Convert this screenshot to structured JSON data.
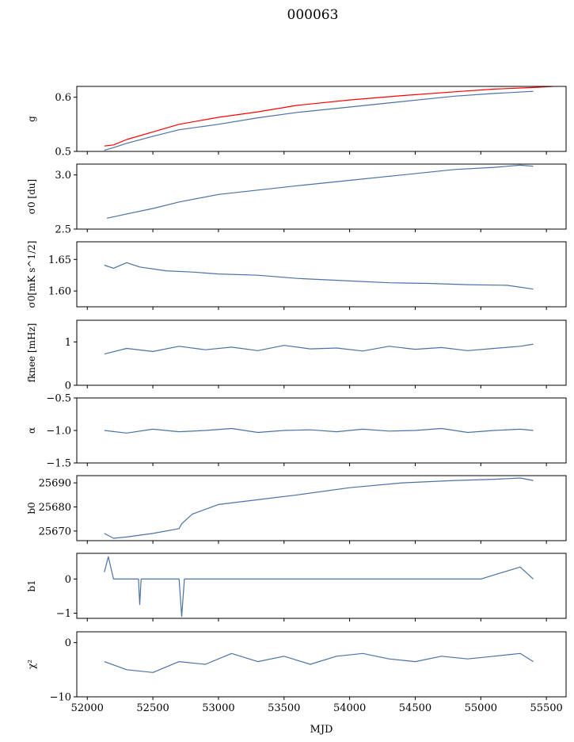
{
  "figure_title": "000063",
  "colors": {
    "series": "#4c72a4",
    "reference": "#ff0000",
    "frame": "#000000"
  },
  "chart_data": {
    "type": "line",
    "title": "000063",
    "xlabel": "MJD",
    "xlim": [
      51920,
      55650
    ],
    "xticks": [
      52000,
      52500,
      53000,
      53500,
      54000,
      54500,
      55000,
      55500
    ],
    "xtick_labels": [
      "52000",
      "52500",
      "53000",
      "53500",
      "54000",
      "54500",
      "55000",
      "55500"
    ],
    "grid": false,
    "panels": [
      {
        "id": "g",
        "ylabel": "g",
        "ylim": [
          0.5,
          0.62
        ],
        "yticks": [
          0.5,
          0.6
        ],
        "ytick_labels": [
          "0.5",
          "0.6"
        ],
        "series": [
          {
            "color": "#4c72a4",
            "x": [
              52130,
              52200,
              52300,
              52500,
              52700,
              53000,
              53300,
              53600,
              54000,
              54400,
              54800,
              55100,
              55400
            ],
            "y": [
              0.502,
              0.507,
              0.515,
              0.528,
              0.54,
              0.55,
              0.562,
              0.572,
              0.582,
              0.592,
              0.602,
              0.607,
              0.611
            ]
          },
          {
            "color": "#ff0000",
            "x": [
              52130,
              52200,
              52300,
              52500,
              52700,
              53000,
              53300,
              53600,
              54000,
              54400,
              54800,
              55100,
              55400,
              55550
            ],
            "y": [
              0.51,
              0.512,
              0.522,
              0.536,
              0.55,
              0.563,
              0.573,
              0.585,
              0.595,
              0.603,
              0.61,
              0.615,
              0.618,
              0.62
            ]
          }
        ]
      },
      {
        "id": "sigma0_du",
        "ylabel": "σ0 [du]",
        "ylim": [
          2.5,
          3.1
        ],
        "yticks": [
          2.5,
          3.0
        ],
        "ytick_labels": [
          "2.5",
          "3.0"
        ],
        "series": [
          {
            "color": "#4c72a4",
            "x": [
              52150,
              52300,
              52500,
              52700,
              53000,
              53300,
              53600,
              54000,
              54400,
              54800,
              55100,
              55300,
              55400
            ],
            "y": [
              2.6,
              2.64,
              2.69,
              2.75,
              2.82,
              2.86,
              2.9,
              2.95,
              3.0,
              3.05,
              3.07,
              3.09,
              3.08
            ]
          }
        ]
      },
      {
        "id": "sigma0_mK",
        "ylabel": "σ0[mK s^1/2]",
        "ylim": [
          1.575,
          1.678
        ],
        "yticks": [
          1.6,
          1.65
        ],
        "ytick_labels": [
          "1.60",
          "1.65"
        ],
        "series": [
          {
            "color": "#4c72a4",
            "x": [
              52130,
              52200,
              52300,
              52400,
              52600,
              52800,
              53000,
              53300,
              53600,
              54000,
              54300,
              54600,
              54900,
              55200,
              55400
            ],
            "y": [
              1.641,
              1.636,
              1.645,
              1.638,
              1.632,
              1.63,
              1.627,
              1.625,
              1.62,
              1.616,
              1.613,
              1.612,
              1.61,
              1.609,
              1.603
            ]
          }
        ]
      },
      {
        "id": "fknee",
        "ylabel": "fknee [mHz]",
        "ylim": [
          0,
          1.5
        ],
        "yticks": [
          0,
          1
        ],
        "ytick_labels": [
          "0",
          "1"
        ],
        "series": [
          {
            "color": "#4c72a4",
            "x": [
              52130,
              52300,
              52500,
              52700,
              52900,
              53100,
              53300,
              53500,
              53700,
              53900,
              54100,
              54300,
              54500,
              54700,
              54900,
              55100,
              55300,
              55400
            ],
            "y": [
              0.72,
              0.85,
              0.78,
              0.9,
              0.82,
              0.88,
              0.8,
              0.92,
              0.84,
              0.86,
              0.79,
              0.9,
              0.83,
              0.87,
              0.8,
              0.85,
              0.9,
              0.95
            ]
          }
        ]
      },
      {
        "id": "alpha",
        "ylabel": "α",
        "ylim": [
          -1.5,
          -0.5
        ],
        "yticks": [
          -1.5,
          -1.0,
          -0.5
        ],
        "ytick_labels": [
          "−1.5",
          "−1.0",
          "−0.5"
        ],
        "series": [
          {
            "color": "#4c72a4",
            "x": [
              52130,
              52300,
              52500,
              52700,
              52900,
              53100,
              53300,
              53500,
              53700,
              53900,
              54100,
              54300,
              54500,
              54700,
              54900,
              55100,
              55300,
              55400
            ],
            "y": [
              -1.0,
              -1.04,
              -0.98,
              -1.02,
              -1.0,
              -0.97,
              -1.03,
              -1.0,
              -0.99,
              -1.02,
              -0.98,
              -1.01,
              -1.0,
              -0.97,
              -1.03,
              -1.0,
              -0.98,
              -1.0
            ]
          }
        ]
      },
      {
        "id": "b0",
        "ylabel": "b0",
        "ylim": [
          25666,
          25693
        ],
        "yticks": [
          25670,
          25680,
          25690
        ],
        "ytick_labels": [
          "25670",
          "25680",
          "25690"
        ],
        "series": [
          {
            "color": "#4c72a4",
            "x": [
              52130,
              52200,
              52300,
              52500,
              52700,
              52720,
              52800,
              53000,
              53300,
              53600,
              54000,
              54400,
              54800,
              55100,
              55300,
              55400
            ],
            "y": [
              25669,
              25667,
              25667.5,
              25669,
              25671,
              25673,
              25677,
              25681,
              25683,
              25685,
              25688,
              25690,
              25691,
              25691.5,
              25692,
              25691
            ]
          }
        ]
      },
      {
        "id": "b1",
        "ylabel": "b1",
        "ylim": [
          -1.15,
          0.75
        ],
        "yticks": [
          -1,
          0
        ],
        "ytick_labels": [
          "−1",
          "0"
        ],
        "series": [
          {
            "color": "#4c72a4",
            "x": [
              52130,
              52160,
              52200,
              52300,
              52390,
              52400,
              52410,
              52600,
              52700,
              52720,
              52740,
              53000,
              53500,
              54000,
              54500,
              55000,
              55300,
              55400
            ],
            "y": [
              0.2,
              0.65,
              0.0,
              0.0,
              0.0,
              -0.75,
              0.0,
              0.0,
              0.0,
              -1.1,
              0.0,
              0.0,
              0.0,
              0.0,
              0.0,
              0.0,
              0.35,
              0.0
            ]
          }
        ]
      },
      {
        "id": "chi2",
        "ylabel": "χ²",
        "ylim": [
          -10,
          2
        ],
        "yticks": [
          -10,
          0
        ],
        "ytick_labels": [
          "−10",
          "0"
        ],
        "series": [
          {
            "color": "#4c72a4",
            "x": [
              52130,
              52300,
              52500,
              52700,
              52900,
              53100,
              53300,
              53500,
              53700,
              53900,
              54100,
              54300,
              54500,
              54700,
              54900,
              55100,
              55300,
              55400
            ],
            "y": [
              -3.5,
              -5.0,
              -5.5,
              -3.5,
              -4.0,
              -2.0,
              -3.5,
              -2.5,
              -4.0,
              -2.5,
              -2.0,
              -3.0,
              -3.5,
              -2.5,
              -3.0,
              -2.5,
              -2.0,
              -3.5
            ]
          }
        ]
      }
    ]
  }
}
